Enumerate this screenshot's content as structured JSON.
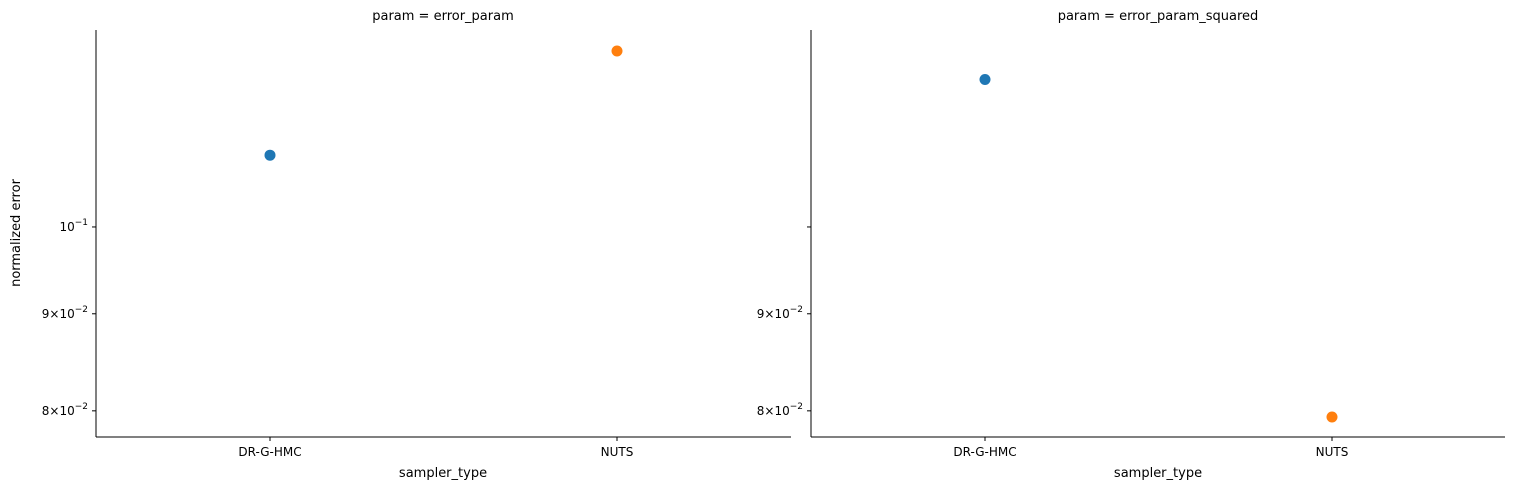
{
  "chart_data": [
    {
      "type": "scatter",
      "title": "param = error_param",
      "xlabel": "sampler_type",
      "ylabel": "normalized error",
      "categories": [
        "DR-G-HMC",
        "NUTS"
      ],
      "values": [
        0.1091,
        0.1238
      ],
      "colors": [
        "#1f77b4",
        "#ff7f0e"
      ],
      "yscale": "log",
      "ylim": [
        0.0775,
        0.127
      ],
      "yticks": [
        {
          "value": 0.1,
          "base": "10",
          "exp": "−1",
          "mult": ""
        },
        {
          "value": 0.09,
          "base": "10",
          "exp": "−2",
          "mult": "9×"
        },
        {
          "value": 0.08,
          "base": "10",
          "exp": "−2",
          "mult": "8×"
        }
      ],
      "grid": false
    },
    {
      "type": "scatter",
      "title": "param = error_param_squared",
      "xlabel": "sampler_type",
      "ylabel": "",
      "categories": [
        "DR-G-HMC",
        "NUTS"
      ],
      "values": [
        0.1196,
        0.0794
      ],
      "colors": [
        "#1f77b4",
        "#ff7f0e"
      ],
      "yscale": "log",
      "ylim": [
        0.0775,
        0.127
      ],
      "yticks": [
        {
          "value": 0.1,
          "base": "",
          "exp": "",
          "mult": ""
        },
        {
          "value": 0.09,
          "base": "10",
          "exp": "−2",
          "mult": "9×"
        },
        {
          "value": 0.08,
          "base": "10",
          "exp": "−2",
          "mult": "8×"
        }
      ],
      "grid": false
    }
  ]
}
